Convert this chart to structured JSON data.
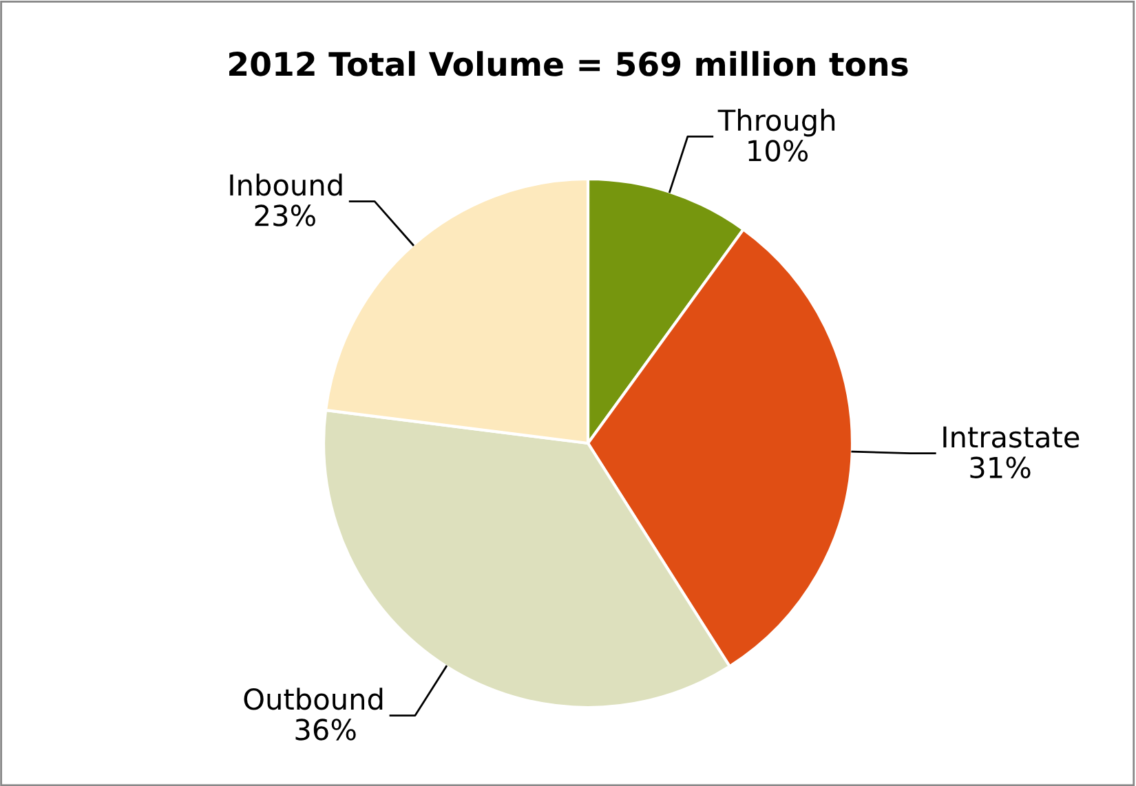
{
  "chart_data": {
    "type": "pie",
    "title": "2012 Total Volume = 569 million tons",
    "categories": [
      "Through",
      "Intrastate",
      "Outbound",
      "Inbound"
    ],
    "values": [
      10,
      31,
      36,
      23
    ],
    "value_labels": [
      "10%",
      "31%",
      "36%",
      "23%"
    ],
    "colors": [
      "#76960e",
      "#e04e14",
      "#dde0bd",
      "#fde9bd"
    ],
    "legend": false
  }
}
